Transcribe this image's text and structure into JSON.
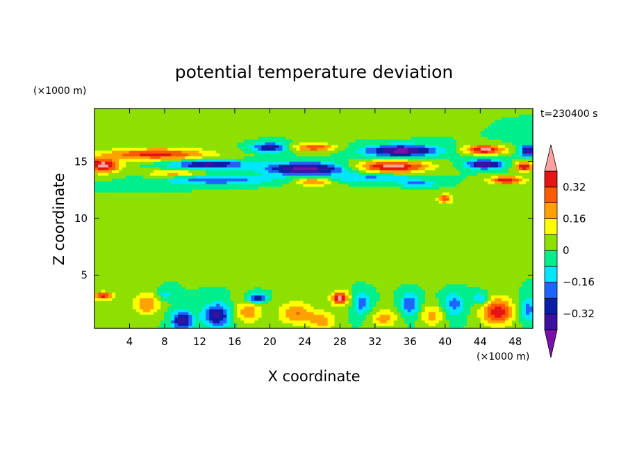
{
  "chart_data": {
    "type": "heatmap",
    "title": "potential temperature deviation",
    "xlabel": "X coordinate",
    "ylabel": "Z coordinate",
    "x_unit": "(×1000 m)",
    "y_unit": "(×1000 m)",
    "time_label": "t=230400 s",
    "xlim": [
      0,
      50
    ],
    "ylim": [
      0.3,
      19.7
    ],
    "x_ticks": [
      4,
      8,
      12,
      16,
      20,
      24,
      28,
      32,
      36,
      40,
      44,
      48
    ],
    "y_ticks": [
      5,
      10,
      15
    ],
    "colorbar": {
      "levels": [
        -0.4,
        -0.32,
        -0.24,
        -0.16,
        -0.08,
        0,
        0.08,
        0.16,
        0.24,
        0.32,
        0.4
      ],
      "tick_labels": [
        "0.32",
        "0.16",
        "0",
        "−0.16",
        "−0.32"
      ],
      "tick_values": [
        0.32,
        0.16,
        0,
        -0.16,
        -0.32
      ],
      "colors": [
        "#7a10a8",
        "#3c11a0",
        "#0a1ea8",
        "#1e64ff",
        "#00e6ff",
        "#00ee8c",
        "#8ee000",
        "#ffff00",
        "#ffa200",
        "#ff5a00",
        "#e61414",
        "#ffa0a0"
      ]
    },
    "background_level": 0,
    "features": [
      {
        "x": 24,
        "z": 14.4,
        "sx": 4.5,
        "sz": 0.55,
        "v": -0.45
      },
      {
        "x": 14,
        "z": 13.4,
        "sx": 6,
        "sz": 0.4,
        "v": -0.22
      },
      {
        "x": 32,
        "z": 13.6,
        "sx": 5,
        "sz": 0.4,
        "v": -0.18
      },
      {
        "x": 13,
        "z": 14.8,
        "sx": 4,
        "sz": 0.4,
        "v": -0.36
      },
      {
        "x": 20,
        "z": 16.3,
        "sx": 2,
        "sz": 0.4,
        "v": -0.35
      },
      {
        "x": 35,
        "z": 16.0,
        "sx": 4,
        "sz": 0.5,
        "v": -0.44
      },
      {
        "x": 44.5,
        "z": 14.8,
        "sx": 2,
        "sz": 0.4,
        "v": -0.42
      },
      {
        "x": 49.5,
        "z": 16.0,
        "sx": 1,
        "sz": 0.5,
        "v": -0.38
      },
      {
        "x": 37,
        "z": 13.1,
        "sx": 2,
        "sz": 0.25,
        "v": -0.2
      },
      {
        "x": 7,
        "z": 15.7,
        "sx": 6,
        "sz": 0.5,
        "v": 0.35
      },
      {
        "x": 1,
        "z": 14.7,
        "sx": 1.8,
        "sz": 0.6,
        "v": 0.46
      },
      {
        "x": 34,
        "z": 14.6,
        "sx": 4,
        "sz": 0.5,
        "v": 0.45
      },
      {
        "x": 44.5,
        "z": 16.1,
        "sx": 2.2,
        "sz": 0.4,
        "v": 0.44
      },
      {
        "x": 25,
        "z": 16.3,
        "sx": 2.5,
        "sz": 0.35,
        "v": 0.3
      },
      {
        "x": 47,
        "z": 13.4,
        "sx": 2,
        "sz": 0.35,
        "v": 0.38
      },
      {
        "x": 49,
        "z": 14.6,
        "sx": 1,
        "sz": 0.4,
        "v": 0.4
      },
      {
        "x": 9,
        "z": 14.0,
        "sx": 3,
        "sz": 0.3,
        "v": 0.2
      },
      {
        "x": 25,
        "z": 13.3,
        "sx": 2,
        "sz": 0.4,
        "v": 0.25
      },
      {
        "x": 40,
        "z": 11.8,
        "sx": 0.8,
        "sz": 0.4,
        "v": 0.3
      },
      {
        "x": 48,
        "z": 17.5,
        "sx": 1.5,
        "sz": 0.5,
        "v": -0.07
      },
      {
        "x": 28,
        "z": 3.0,
        "sx": 1.0,
        "sz": 0.6,
        "v": 0.42
      },
      {
        "x": 1,
        "z": 3.2,
        "sx": 1.2,
        "sz": 0.35,
        "v": 0.36
      },
      {
        "x": 6,
        "z": 2.5,
        "sx": 1.5,
        "sz": 1.0,
        "v": 0.24
      },
      {
        "x": 10,
        "z": 1.0,
        "sx": 1.2,
        "sz": 0.9,
        "v": -0.36
      },
      {
        "x": 14,
        "z": 1.5,
        "sx": 1.5,
        "sz": 1.0,
        "v": -0.36
      },
      {
        "x": 17.5,
        "z": 1.8,
        "sx": 1.5,
        "sz": 1.0,
        "v": 0.22
      },
      {
        "x": 18.5,
        "z": 3.0,
        "sx": 1.0,
        "sz": 0.4,
        "v": -0.36
      },
      {
        "x": 23,
        "z": 1.7,
        "sx": 2,
        "sz": 1.0,
        "v": 0.24
      },
      {
        "x": 26,
        "z": 1.0,
        "sx": 1.5,
        "sz": 0.8,
        "v": 0.2
      },
      {
        "x": 30.5,
        "z": 2.5,
        "sx": 1,
        "sz": 1.0,
        "v": -0.2
      },
      {
        "x": 33,
        "z": 1.2,
        "sx": 1.5,
        "sz": 0.8,
        "v": 0.2
      },
      {
        "x": 36,
        "z": 2.5,
        "sx": 1,
        "sz": 1.0,
        "v": -0.24
      },
      {
        "x": 38.5,
        "z": 1.5,
        "sx": 1.2,
        "sz": 0.9,
        "v": 0.2
      },
      {
        "x": 41,
        "z": 2.5,
        "sx": 1.2,
        "sz": 1.0,
        "v": -0.2
      },
      {
        "x": 46,
        "z": 1.8,
        "sx": 1.8,
        "sz": 1.2,
        "v": 0.38
      },
      {
        "x": 49.5,
        "z": 2.0,
        "sx": 1.0,
        "sz": 1.0,
        "v": -0.2
      },
      {
        "x": 8,
        "z": 3.3,
        "sx": 1.0,
        "sz": 0.5,
        "v": -0.12
      },
      {
        "x": 44,
        "z": 3.0,
        "sx": 1.0,
        "sz": 0.5,
        "v": -0.18
      },
      {
        "x": 25,
        "z": 9,
        "sx": 8,
        "sz": 3,
        "v": 0.05
      },
      {
        "x": 38,
        "z": 8,
        "sx": 5,
        "sz": 3,
        "v": 0.05
      },
      {
        "x": 10,
        "z": 18,
        "sx": 6,
        "sz": 1.2,
        "v": 0.05
      },
      {
        "x": 30,
        "z": 18.5,
        "sx": 6,
        "sz": 1.0,
        "v": 0.05
      }
    ]
  }
}
